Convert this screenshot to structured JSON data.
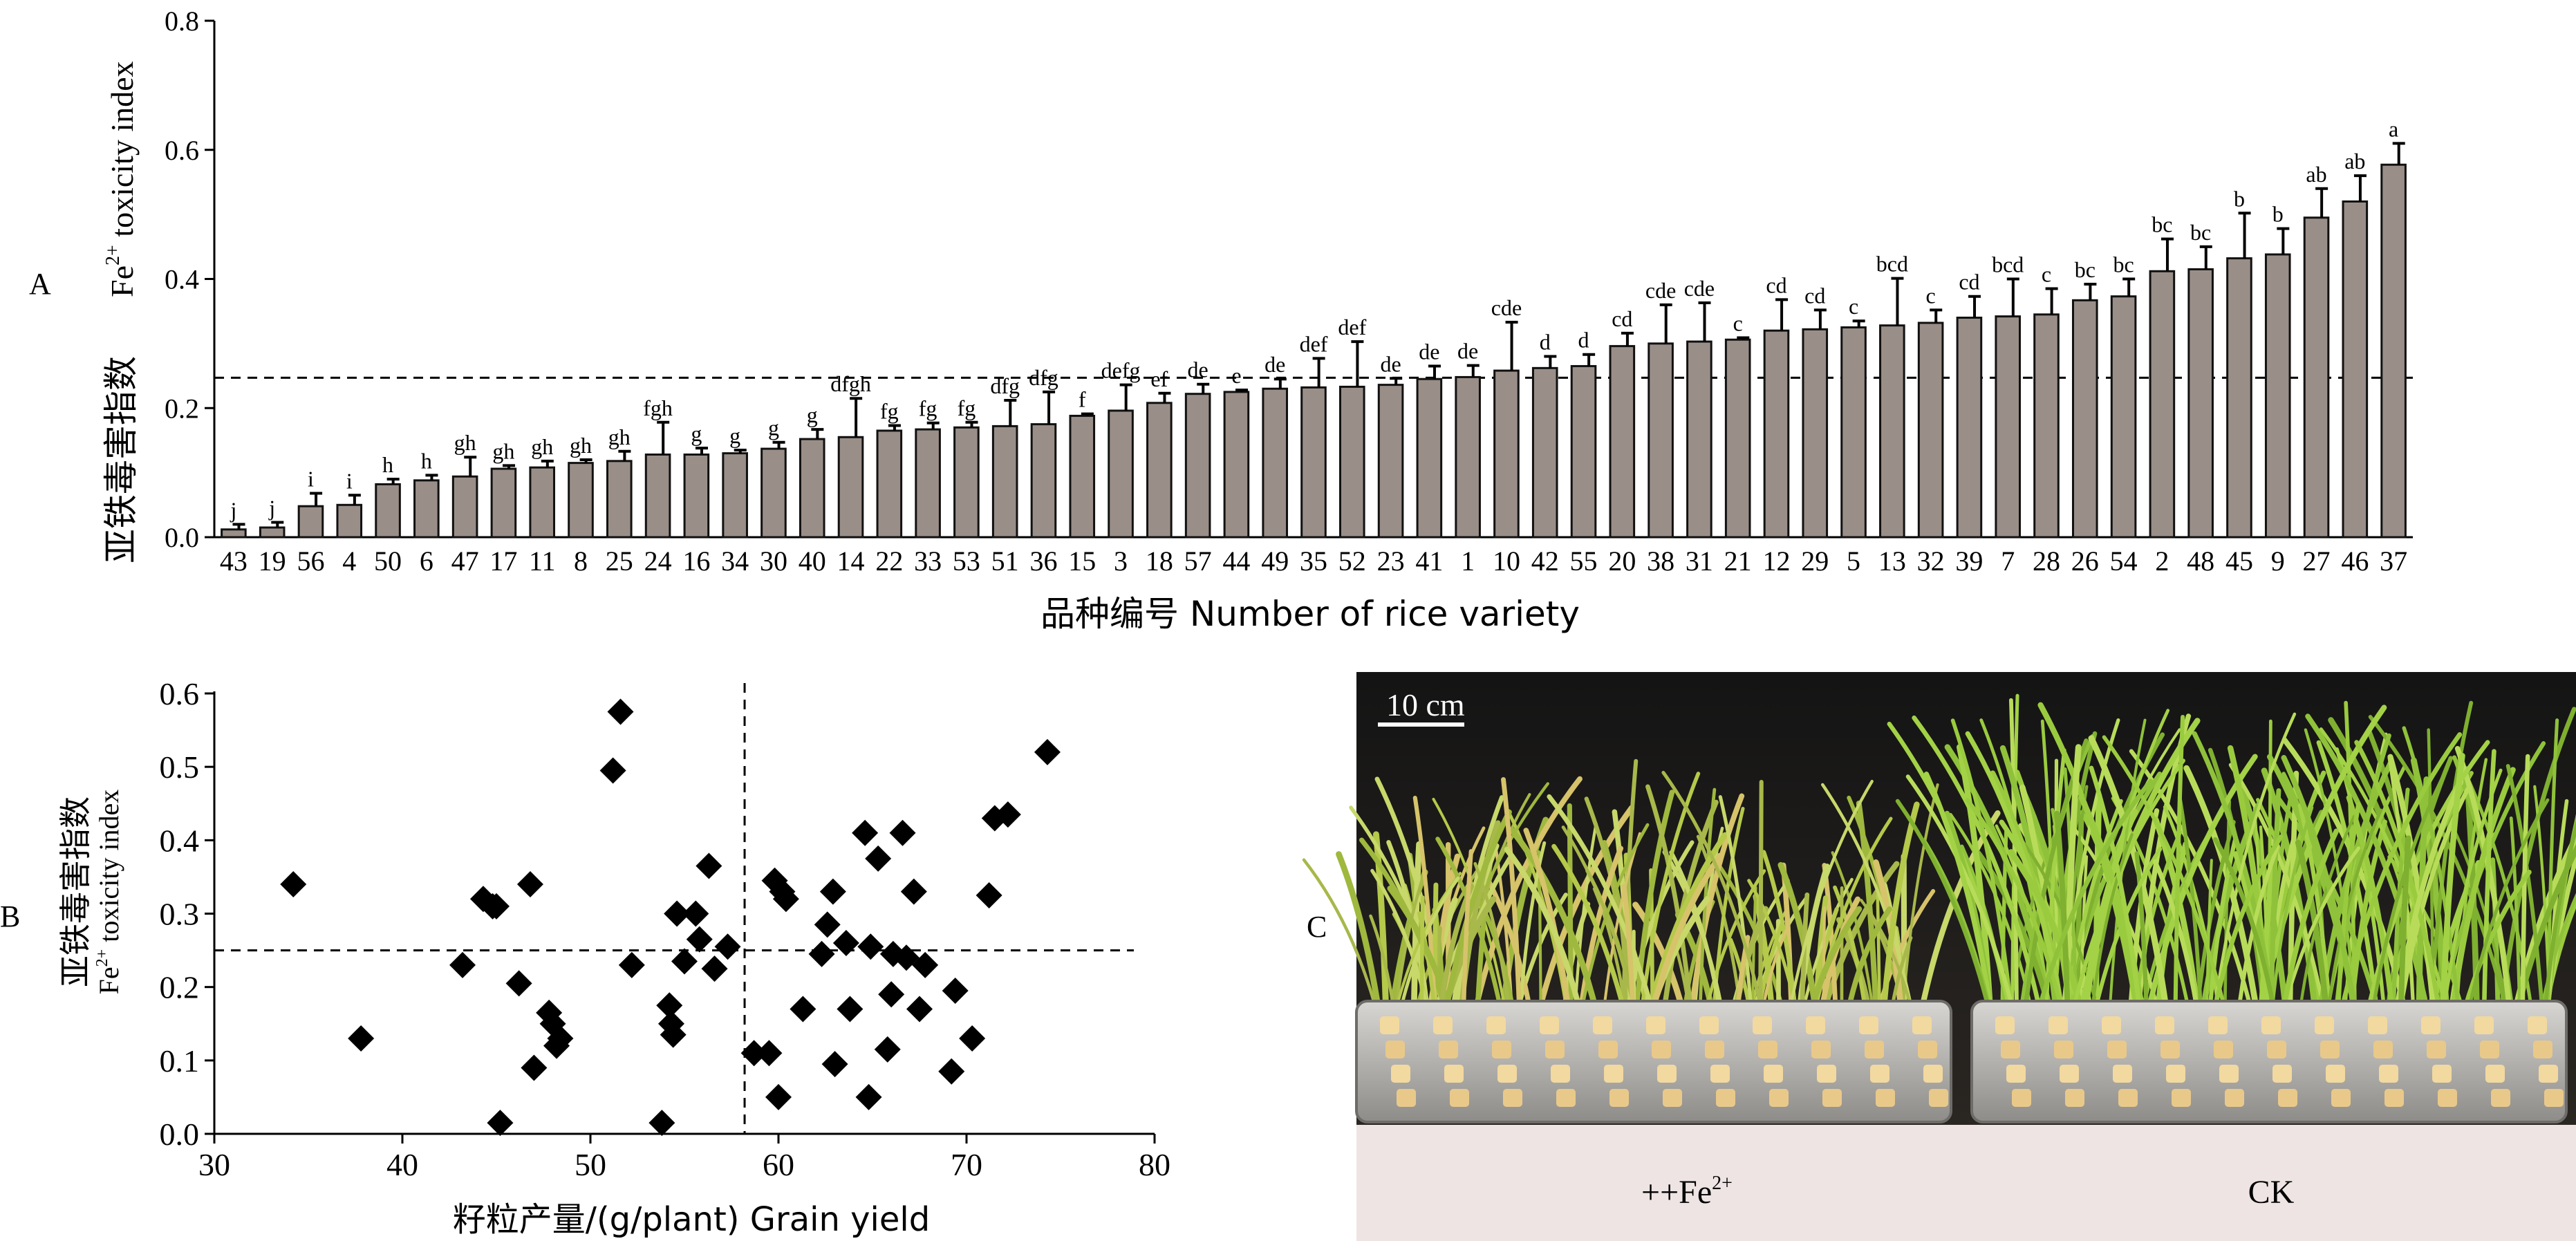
{
  "panel_labels": {
    "a": "A",
    "b": "B",
    "c": "C"
  },
  "chart_data": [
    {
      "type": "bar",
      "panel": "A",
      "ylabel_cn": "亚铁毒害指数",
      "ylabel_en_prefix": "Fe",
      "ylabel_en_sup": "2+",
      "ylabel_en_suffix": " toxicity index",
      "xlabel": "品种编号 Number of rice variety",
      "ylim": [
        0,
        0.8
      ],
      "yticks": [
        0.0,
        0.2,
        0.4,
        0.6,
        0.8
      ],
      "ytick_labels": [
        "0.0",
        "0.2",
        "0.4",
        "0.6",
        "0.8"
      ],
      "reference_line": 0.247,
      "categories": [
        "43",
        "19",
        "56",
        "4",
        "50",
        "6",
        "47",
        "17",
        "11",
        "8",
        "25",
        "24",
        "16",
        "34",
        "30",
        "40",
        "14",
        "22",
        "33",
        "53",
        "51",
        "36",
        "15",
        "3",
        "18",
        "57",
        "44",
        "49",
        "35",
        "52",
        "23",
        "41",
        "1",
        "10",
        "42",
        "55",
        "20",
        "38",
        "31",
        "21",
        "12",
        "29",
        "5",
        "13",
        "32",
        "39",
        "7",
        "28",
        "26",
        "54",
        "2",
        "48",
        "45",
        "9",
        "27",
        "46",
        "37"
      ],
      "values": [
        0.012,
        0.015,
        0.048,
        0.05,
        0.082,
        0.088,
        0.094,
        0.106,
        0.108,
        0.115,
        0.118,
        0.128,
        0.128,
        0.13,
        0.137,
        0.152,
        0.155,
        0.165,
        0.167,
        0.17,
        0.172,
        0.175,
        0.188,
        0.196,
        0.208,
        0.222,
        0.225,
        0.23,
        0.232,
        0.233,
        0.236,
        0.245,
        0.248,
        0.258,
        0.262,
        0.265,
        0.296,
        0.3,
        0.303,
        0.306,
        0.32,
        0.322,
        0.325,
        0.328,
        0.332,
        0.34,
        0.342,
        0.345,
        0.367,
        0.373,
        0.412,
        0.415,
        0.432,
        0.438,
        0.495,
        0.52,
        0.577
      ],
      "errors": [
        0.008,
        0.008,
        0.02,
        0.015,
        0.008,
        0.008,
        0.03,
        0.005,
        0.01,
        0.005,
        0.015,
        0.05,
        0.01,
        0.005,
        0.01,
        0.015,
        0.06,
        0.008,
        0.01,
        0.008,
        0.04,
        0.05,
        0.003,
        0.04,
        0.015,
        0.015,
        0.003,
        0.015,
        0.045,
        0.07,
        0.01,
        0.02,
        0.018,
        0.075,
        0.018,
        0.018,
        0.02,
        0.06,
        0.06,
        0.003,
        0.048,
        0.03,
        0.01,
        0.073,
        0.02,
        0.033,
        0.058,
        0.04,
        0.025,
        0.027,
        0.05,
        0.035,
        0.07,
        0.04,
        0.045,
        0.04,
        0.033
      ],
      "significance": [
        "j",
        "j",
        "i",
        "i",
        "h",
        "h",
        "gh",
        "gh",
        "gh",
        "gh",
        "gh",
        "fgh",
        "g",
        "g",
        "g",
        "g",
        "dfgh",
        "fg",
        "fg",
        "fg",
        "dfg",
        "dfg",
        "f",
        "defg",
        "ef",
        "de",
        "e",
        "de",
        "def",
        "def",
        "de",
        "de",
        "de",
        "cde",
        "d",
        "d",
        "cd",
        "cde",
        "cde",
        "c",
        "cd",
        "cd",
        "c",
        "bcd",
        "c",
        "cd",
        "bcd",
        "c",
        "bc",
        "bc",
        "bc",
        "bc",
        "b",
        "b",
        "ab",
        "ab",
        "a"
      ]
    },
    {
      "type": "scatter",
      "panel": "B",
      "ylabel_cn": "亚铁毒害指数",
      "ylabel_en_prefix": "Fe",
      "ylabel_en_sup": "2+",
      "ylabel_en_suffix": " toxicity index",
      "xlabel": "籽粒产量/(g/plant)  Grain yield",
      "xlim": [
        30,
        80
      ],
      "ylim": [
        0,
        0.6
      ],
      "xticks": [
        30,
        40,
        50,
        60,
        70,
        80
      ],
      "xtick_labels": [
        "30",
        "40",
        "50",
        "60",
        "70",
        "80"
      ],
      "yticks": [
        0.0,
        0.1,
        0.2,
        0.3,
        0.4,
        0.5,
        0.6
      ],
      "ytick_labels": [
        "0.0",
        "0.1",
        "0.2",
        "0.3",
        "0.4",
        "0.5",
        "0.6"
      ],
      "reference_x": 58.2,
      "reference_y": 0.25,
      "points": [
        [
          34.2,
          0.34
        ],
        [
          37.8,
          0.13
        ],
        [
          43.2,
          0.23
        ],
        [
          44.3,
          0.32
        ],
        [
          44.8,
          0.31
        ],
        [
          45.0,
          0.31
        ],
        [
          45.2,
          0.015
        ],
        [
          46.2,
          0.205
        ],
        [
          46.8,
          0.34
        ],
        [
          47.0,
          0.09
        ],
        [
          47.8,
          0.165
        ],
        [
          48.0,
          0.15
        ],
        [
          48.2,
          0.12
        ],
        [
          48.4,
          0.13
        ],
        [
          51.2,
          0.495
        ],
        [
          51.6,
          0.575
        ],
        [
          52.2,
          0.23
        ],
        [
          53.8,
          0.015
        ],
        [
          54.2,
          0.175
        ],
        [
          54.3,
          0.15
        ],
        [
          54.4,
          0.135
        ],
        [
          54.6,
          0.3
        ],
        [
          55.0,
          0.235
        ],
        [
          55.6,
          0.3
        ],
        [
          55.8,
          0.265
        ],
        [
          56.3,
          0.365
        ],
        [
          56.6,
          0.225
        ],
        [
          57.3,
          0.255
        ],
        [
          58.7,
          0.11
        ],
        [
          59.5,
          0.11
        ],
        [
          59.8,
          0.345
        ],
        [
          60.0,
          0.05
        ],
        [
          60.2,
          0.33
        ],
        [
          60.4,
          0.32
        ],
        [
          61.3,
          0.17
        ],
        [
          62.3,
          0.245
        ],
        [
          62.6,
          0.285
        ],
        [
          62.9,
          0.33
        ],
        [
          63.0,
          0.095
        ],
        [
          63.6,
          0.26
        ],
        [
          63.8,
          0.17
        ],
        [
          64.6,
          0.41
        ],
        [
          64.8,
          0.05
        ],
        [
          64.9,
          0.255
        ],
        [
          65.3,
          0.375
        ],
        [
          65.8,
          0.115
        ],
        [
          66.0,
          0.19
        ],
        [
          66.1,
          0.245
        ],
        [
          66.6,
          0.41
        ],
        [
          66.8,
          0.24
        ],
        [
          67.2,
          0.33
        ],
        [
          67.5,
          0.17
        ],
        [
          67.8,
          0.23
        ],
        [
          69.2,
          0.085
        ],
        [
          69.4,
          0.195
        ],
        [
          70.3,
          0.13
        ],
        [
          71.2,
          0.325
        ],
        [
          71.5,
          0.43
        ],
        [
          72.2,
          0.435
        ],
        [
          74.3,
          0.52
        ]
      ]
    }
  ],
  "photo": {
    "scale_label": "10 cm",
    "treatment_prefix": "++Fe",
    "treatment_sup": "2+",
    "control_label": "CK"
  }
}
